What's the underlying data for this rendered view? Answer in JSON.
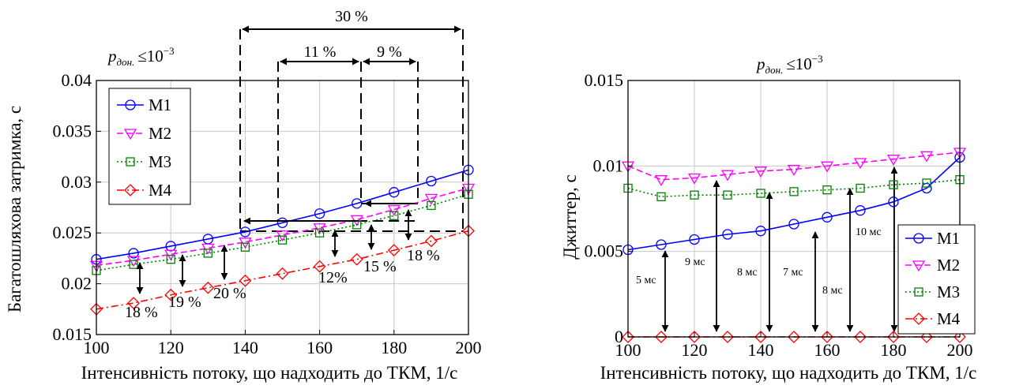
{
  "chart_data": [
    {
      "type": "line",
      "xlabel": "Інтенсивність потоку, що надходить до ТКМ, 1/с",
      "ylabel": "Багатошляхова затримка, с",
      "condition": {
        "prefix": "p",
        "sub": "дон.",
        "rel": "≤10",
        "exp": "−3"
      },
      "xlim": [
        100,
        200
      ],
      "ylim": [
        0.015,
        0.04
      ],
      "grid": true,
      "legend_position": "upper-left",
      "x_ticks": [
        "100",
        "120",
        "140",
        "160",
        "180",
        "200"
      ],
      "y_ticks": [
        "0.015",
        "0.02",
        "0.025",
        "0.03",
        "0.035",
        "0.04"
      ],
      "x": [
        100,
        110,
        120,
        130,
        140,
        150,
        160,
        170,
        180,
        190,
        200
      ],
      "series": [
        {
          "name": "M1",
          "color": "#0000ff",
          "marker": "circle",
          "linestyle": "solid",
          "values": [
            0.0224,
            0.023,
            0.0237,
            0.0244,
            0.0251,
            0.026,
            0.0269,
            0.0279,
            0.029,
            0.0301,
            0.0312
          ]
        },
        {
          "name": "M2",
          "color": "#ff00ff",
          "marker": "triangle-down",
          "linestyle": "dashed",
          "values": [
            0.0218,
            0.0223,
            0.0229,
            0.0235,
            0.0241,
            0.0248,
            0.0255,
            0.0263,
            0.0273,
            0.0284,
            0.0294
          ]
        },
        {
          "name": "M3",
          "color": "#008000",
          "marker": "square",
          "linestyle": "dotted",
          "values": [
            0.0213,
            0.0219,
            0.0224,
            0.023,
            0.0236,
            0.0243,
            0.025,
            0.0258,
            0.0267,
            0.0277,
            0.0288
          ]
        },
        {
          "name": "M4",
          "color": "#ff0000",
          "marker": "diamond",
          "linestyle": "dashdot",
          "values": [
            0.0175,
            0.0181,
            0.0189,
            0.0196,
            0.0203,
            0.021,
            0.0217,
            0.0224,
            0.0233,
            0.0242,
            0.0252
          ]
        }
      ],
      "annotations": {
        "pct_bottom": [
          "18 %",
          "19 %",
          "20 %",
          "12%",
          "15 %",
          "18 %"
        ],
        "pct_top": [
          "30 %",
          "11 %",
          "9 %"
        ]
      }
    },
    {
      "type": "line",
      "xlabel": "Інтенсивність потоку, що надходить до ТКМ, 1/с",
      "ylabel": "Джиттер, с",
      "condition": {
        "prefix": "p",
        "sub": "дон.",
        "rel": "≤10",
        "exp": "−3"
      },
      "xlim": [
        100,
        200
      ],
      "ylim": [
        0,
        0.015
      ],
      "grid": true,
      "legend_position": "lower-right",
      "x_ticks": [
        "100",
        "120",
        "140",
        "160",
        "180",
        "200"
      ],
      "y_ticks": [
        "0",
        "0.005",
        "0.01",
        "0.015"
      ],
      "x": [
        100,
        110,
        120,
        130,
        140,
        150,
        160,
        170,
        180,
        190,
        200
      ],
      "series": [
        {
          "name": "M1",
          "color": "#0000ff",
          "marker": "circle",
          "linestyle": "solid",
          "values": [
            0.0051,
            0.0054,
            0.0057,
            0.006,
            0.0062,
            0.0066,
            0.007,
            0.0074,
            0.0079,
            0.0087,
            0.0105
          ]
        },
        {
          "name": "M2",
          "color": "#ff00ff",
          "marker": "triangle-down",
          "linestyle": "dashed",
          "values": [
            0.01,
            0.0092,
            0.0093,
            0.0095,
            0.0097,
            0.0098,
            0.01,
            0.0102,
            0.0104,
            0.0106,
            0.0108
          ]
        },
        {
          "name": "M3",
          "color": "#008000",
          "marker": "square",
          "linestyle": "dotted",
          "values": [
            0.0087,
            0.0082,
            0.0083,
            0.0083,
            0.0084,
            0.0085,
            0.0086,
            0.0087,
            0.0089,
            0.009,
            0.0092
          ]
        },
        {
          "name": "M4",
          "color": "#ff0000",
          "marker": "diamond",
          "linestyle": "dashdot",
          "values": [
            0,
            0,
            0,
            0,
            0,
            0,
            0,
            0,
            0,
            0,
            0
          ]
        }
      ],
      "annotations": {
        "arrow_labels": [
          "5 мс",
          "9 мс",
          "8 мс",
          "7 мс",
          "8 мс",
          "10 мс"
        ]
      }
    }
  ]
}
